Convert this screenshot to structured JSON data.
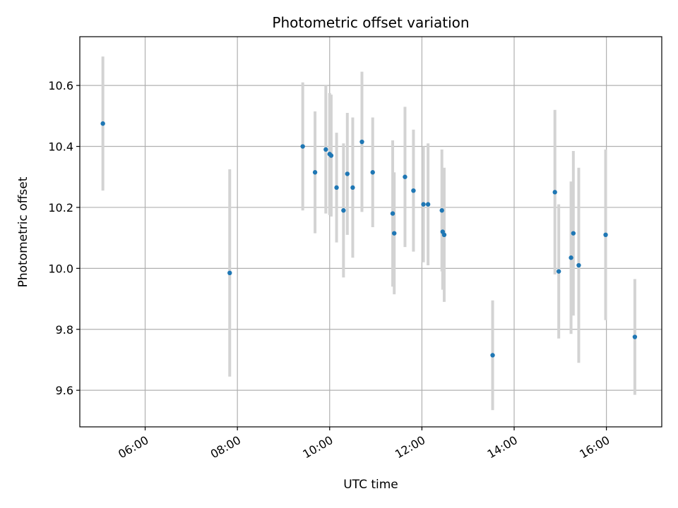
{
  "chart_data": {
    "type": "scatter",
    "title": "Photometric offset variation",
    "xlabel": "UTC time",
    "ylabel": "Photometric offset",
    "x_type": "time",
    "xlim": [
      "04:35",
      "17:12"
    ],
    "ylim": [
      9.48,
      10.76
    ],
    "x_ticks": [
      "06:00",
      "08:00",
      "10:00",
      "12:00",
      "14:00",
      "16:00"
    ],
    "y_ticks": [
      9.6,
      9.8,
      10.0,
      10.2,
      10.4,
      10.6
    ],
    "grid": true,
    "marker_color": "#1f77b4",
    "errorbar_color": "#d3d3d3",
    "points": [
      {
        "x": "05:05",
        "y": 10.475,
        "err": 0.22
      },
      {
        "x": "07:50",
        "y": 9.985,
        "err": 0.34
      },
      {
        "x": "09:25",
        "y": 10.4,
        "err": 0.21
      },
      {
        "x": "09:41",
        "y": 10.315,
        "err": 0.2
      },
      {
        "x": "09:55",
        "y": 10.39,
        "err": 0.21
      },
      {
        "x": "10:00",
        "y": 10.375,
        "err": 0.2
      },
      {
        "x": "10:02",
        "y": 10.37,
        "err": 0.2
      },
      {
        "x": "10:09",
        "y": 10.265,
        "err": 0.18
      },
      {
        "x": "10:18",
        "y": 10.19,
        "err": 0.22
      },
      {
        "x": "10:23",
        "y": 10.31,
        "err": 0.2
      },
      {
        "x": "10:30",
        "y": 10.265,
        "err": 0.23
      },
      {
        "x": "10:42",
        "y": 10.415,
        "err": 0.23
      },
      {
        "x": "10:56",
        "y": 10.315,
        "err": 0.18
      },
      {
        "x": "11:22",
        "y": 10.18,
        "err": 0.24
      },
      {
        "x": "11:24",
        "y": 10.115,
        "err": 0.2
      },
      {
        "x": "11:38",
        "y": 10.3,
        "err": 0.23
      },
      {
        "x": "11:49",
        "y": 10.255,
        "err": 0.2
      },
      {
        "x": "12:02",
        "y": 10.21,
        "err": 0.19
      },
      {
        "x": "12:08",
        "y": 10.21,
        "err": 0.2
      },
      {
        "x": "12:26",
        "y": 10.19,
        "err": 0.2
      },
      {
        "x": "12:27",
        "y": 10.12,
        "err": 0.19
      },
      {
        "x": "12:29",
        "y": 10.11,
        "err": 0.22
      },
      {
        "x": "13:32",
        "y": 9.715,
        "err": 0.18
      },
      {
        "x": "14:53",
        "y": 10.25,
        "err": 0.27
      },
      {
        "x": "14:58",
        "y": 9.99,
        "err": 0.22
      },
      {
        "x": "15:14",
        "y": 10.035,
        "err": 0.25
      },
      {
        "x": "15:17",
        "y": 10.115,
        "err": 0.27
      },
      {
        "x": "15:24",
        "y": 10.01,
        "err": 0.32
      },
      {
        "x": "15:59",
        "y": 10.11,
        "err": 0.28
      },
      {
        "x": "16:37",
        "y": 9.775,
        "err": 0.19
      }
    ]
  }
}
